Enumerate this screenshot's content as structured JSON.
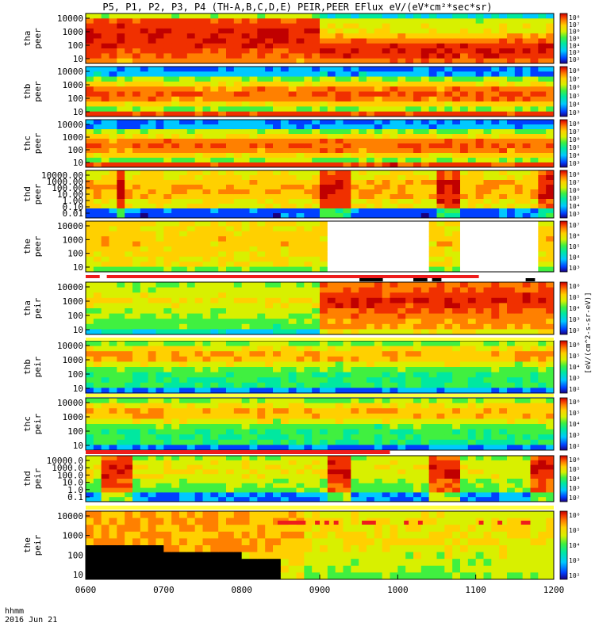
{
  "title": "P5, P1, P2, P3, P4 (TH-A,B,C,D,E) PEIR,PEER EFlux eV/(eV*cm²*sec*sr)",
  "time_axis": {
    "label_line1": "hhmm",
    "label_line2": "2016 Jun 21",
    "ticks": [
      "0600",
      "0700",
      "0800",
      "0900",
      "1000",
      "1100",
      "1200"
    ]
  },
  "colorbar_label": "[eV/(cm^2-s-sr-eV)]",
  "chart_data": {
    "type": "heatmap",
    "x_range": [
      "0600",
      "1200"
    ],
    "panels": [
      {
        "probe": "tha",
        "species": "peer",
        "yticks": [
          "10",
          "100",
          "1000",
          "10000"
        ],
        "cbar_ticks": [
          "10²",
          "10³",
          "10⁴",
          "10⁵",
          "10⁶",
          "10⁷",
          "10⁸"
        ],
        "grid": false
      },
      {
        "probe": "thb",
        "species": "peer",
        "yticks": [
          "10",
          "100",
          "1000",
          "10000"
        ],
        "cbar_ticks": [
          "10³",
          "10⁴",
          "10⁵",
          "10⁶",
          "10⁷",
          "10⁸"
        ],
        "grid": false
      },
      {
        "probe": "thc",
        "species": "peer",
        "yticks": [
          "10",
          "100",
          "1000",
          "10000"
        ],
        "cbar_ticks": [
          "10³",
          "10⁴",
          "10⁵",
          "10⁶",
          "10⁷",
          "10⁸"
        ],
        "grid": false
      },
      {
        "probe": "thd",
        "species": "peer",
        "yticks": [
          "0.01",
          "0.10",
          "1.00",
          "10.00",
          "100.00",
          "1000.00",
          "10000.00"
        ],
        "cbar_ticks": [
          "10³",
          "10⁴",
          "10⁵",
          "10⁶",
          "10⁷",
          "10⁸"
        ],
        "grid": false
      },
      {
        "probe": "the",
        "species": "peer",
        "yticks": [
          "10",
          "100",
          "1000",
          "10000"
        ],
        "cbar_ticks": [
          "10³",
          "10⁴",
          "10⁵",
          "10⁶",
          "10⁷"
        ],
        "grid": false
      },
      {
        "probe": "tha",
        "species": "peir",
        "yticks": [
          "10",
          "100",
          "1000",
          "10000"
        ],
        "cbar_ticks": [
          "10²",
          "10³",
          "10⁴",
          "10⁵",
          "10⁶"
        ],
        "grid": false
      },
      {
        "probe": "thb",
        "species": "peir",
        "yticks": [
          "10",
          "100",
          "1000",
          "10000"
        ],
        "cbar_ticks": [
          "10²",
          "10³",
          "10⁴",
          "10⁵",
          "10⁶"
        ],
        "grid": false
      },
      {
        "probe": "thc",
        "species": "peir",
        "yticks": [
          "10",
          "100",
          "1000",
          "10000"
        ],
        "cbar_ticks": [
          "10²",
          "10³",
          "10⁴",
          "10⁵",
          "10⁶"
        ],
        "grid": false
      },
      {
        "probe": "thd",
        "species": "peir",
        "yticks": [
          "0.1",
          "1.0",
          "10.0",
          "100.0",
          "1000.0",
          "10000.0"
        ],
        "cbar_ticks": [
          "10²",
          "10³",
          "10⁴",
          "10⁵",
          "10⁶"
        ],
        "grid": false
      },
      {
        "probe": "the",
        "species": "peir",
        "yticks": [
          "10",
          "100",
          "1000",
          "10000"
        ],
        "cbar_ticks": [
          "10²",
          "10³",
          "10⁴",
          "10⁵",
          "10⁶"
        ],
        "grid": false
      }
    ]
  },
  "colors": {
    "ramp": [
      "#1a0080",
      "#0040ff",
      "#00c8ff",
      "#00e8a0",
      "#40f040",
      "#d8f000",
      "#ffd000",
      "#ff8000",
      "#f03000",
      "#c00000"
    ],
    "flag_red": "#ee1c1c",
    "flag_yellow": "#ffff40",
    "flag_black": "#000000"
  }
}
